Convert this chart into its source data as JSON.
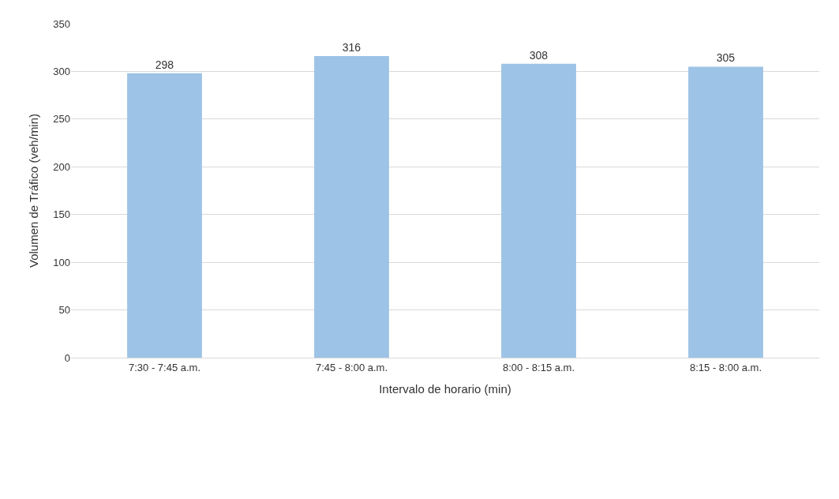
{
  "chart_data": {
    "type": "bar",
    "categories": [
      "7:30 - 7:45 a.m.",
      "7:45 - 8:00 a.m.",
      "8:00 - 8:15 a.m.",
      "8:15 - 8:00 a.m."
    ],
    "values": [
      298,
      316,
      308,
      305
    ],
    "color": "#9dc3e6",
    "xlabel": "Intervalo de horario (min)",
    "ylabel": "Volumen de Tráfico (veh/min)",
    "ylim": [
      0,
      350
    ],
    "yticks": [
      0,
      50,
      100,
      150,
      200,
      250,
      300,
      350
    ],
    "grid": "y",
    "data_labels": true,
    "legend": false
  }
}
